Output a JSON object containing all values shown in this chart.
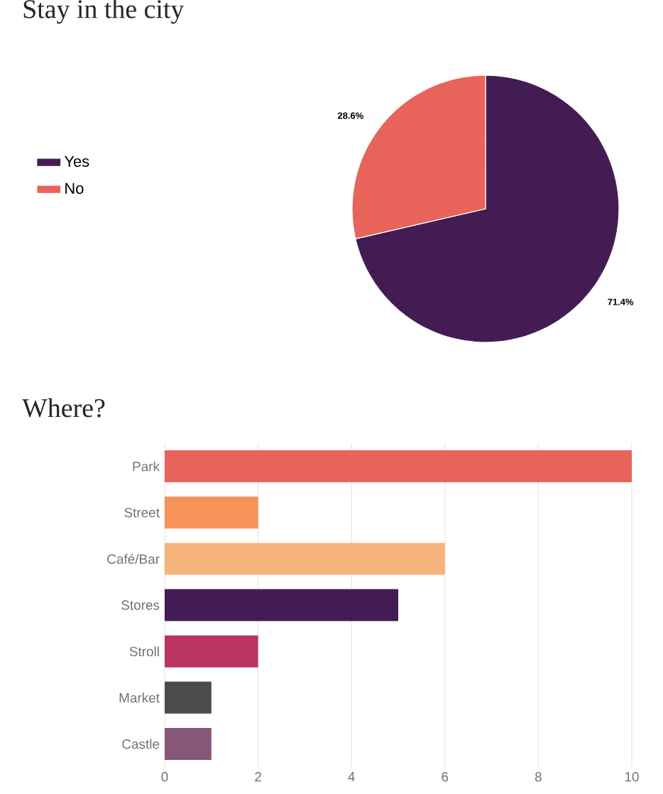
{
  "chart_data": [
    {
      "type": "pie",
      "title": "Stay in the city",
      "categories": [
        "Yes",
        "No"
      ],
      "values": [
        71.4,
        28.6
      ],
      "colors": [
        "#441c54",
        "#e8645a"
      ],
      "value_labels": [
        "71.4%",
        "28.6%"
      ],
      "legend": "left"
    },
    {
      "type": "bar",
      "title": "Where?",
      "orientation": "horizontal",
      "categories": [
        "Park",
        "Street",
        "Café/Bar",
        "Stores",
        "Stroll",
        "Market",
        "Castle"
      ],
      "values": [
        10,
        2,
        6,
        5,
        2,
        1,
        1
      ],
      "colors": [
        "#e8645a",
        "#f6925a",
        "#f7b37c",
        "#441c54",
        "#bb3362",
        "#4a4c4e",
        "#875678"
      ],
      "xlim": [
        0,
        10
      ],
      "xticks": [
        0,
        2,
        4,
        6,
        8,
        10
      ],
      "grid": "x"
    }
  ]
}
